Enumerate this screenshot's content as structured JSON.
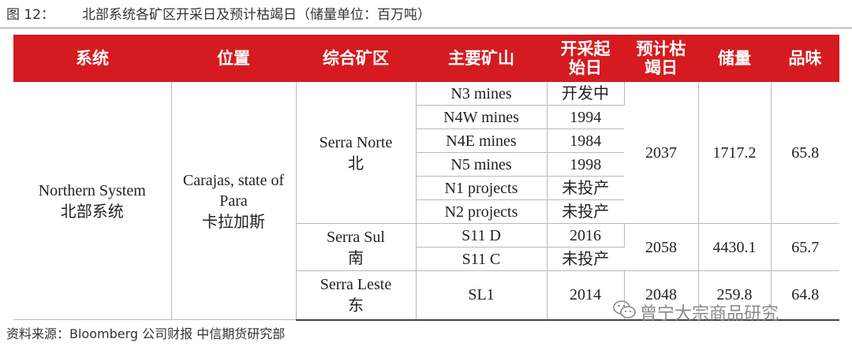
{
  "caption": {
    "label": "图 12：",
    "title": "北部系统各矿区开采日及预计枯竭日（储量单位：百万吨）"
  },
  "table": {
    "headers": [
      "系统",
      "位置",
      "综合矿区",
      "主要矿山",
      "开采起始日",
      "预计枯竭日",
      "储量",
      "品味"
    ],
    "system": {
      "en": "Northern System",
      "zh": "北部系统"
    },
    "location": {
      "line1": "Carajas, state of",
      "line2": "Para",
      "zh": "卡拉加斯"
    },
    "complexes": [
      {
        "en": "Serra Norte",
        "zh": "北",
        "depletion": "2037",
        "reserves": "1717.2",
        "grade": "65.8",
        "mines": [
          {
            "name": "N3 mines",
            "start": "开发中"
          },
          {
            "name": "N4W mines",
            "start": "1994"
          },
          {
            "name": "N4E mines",
            "start": "1984"
          },
          {
            "name": "N5 mines",
            "start": "1998"
          },
          {
            "name": "N1 projects",
            "start": "未投产"
          },
          {
            "name": "N2 projects",
            "start": "未投产"
          }
        ]
      },
      {
        "en": "Serra Sul",
        "zh": "南",
        "depletion": "2058",
        "reserves": "4430.1",
        "grade": "65.7",
        "mines": [
          {
            "name": "S11 D",
            "start": "2016"
          },
          {
            "name": "S11 C",
            "start": "未投产"
          }
        ]
      },
      {
        "en": "Serra Leste",
        "zh": "东",
        "depletion": "2048",
        "reserves": "259.8",
        "grade": "64.8",
        "mines": [
          {
            "name": "SL1",
            "start": "2014"
          }
        ]
      }
    ]
  },
  "footer": "资料来源：Bloomberg 公司财报 中信期货研究部",
  "watermark": {
    "text": "曾宁大宗商品研究",
    "icon": "wechat-icon"
  },
  "colors": {
    "header_bg": "#d51b1f",
    "header_text": "#ffffff"
  }
}
